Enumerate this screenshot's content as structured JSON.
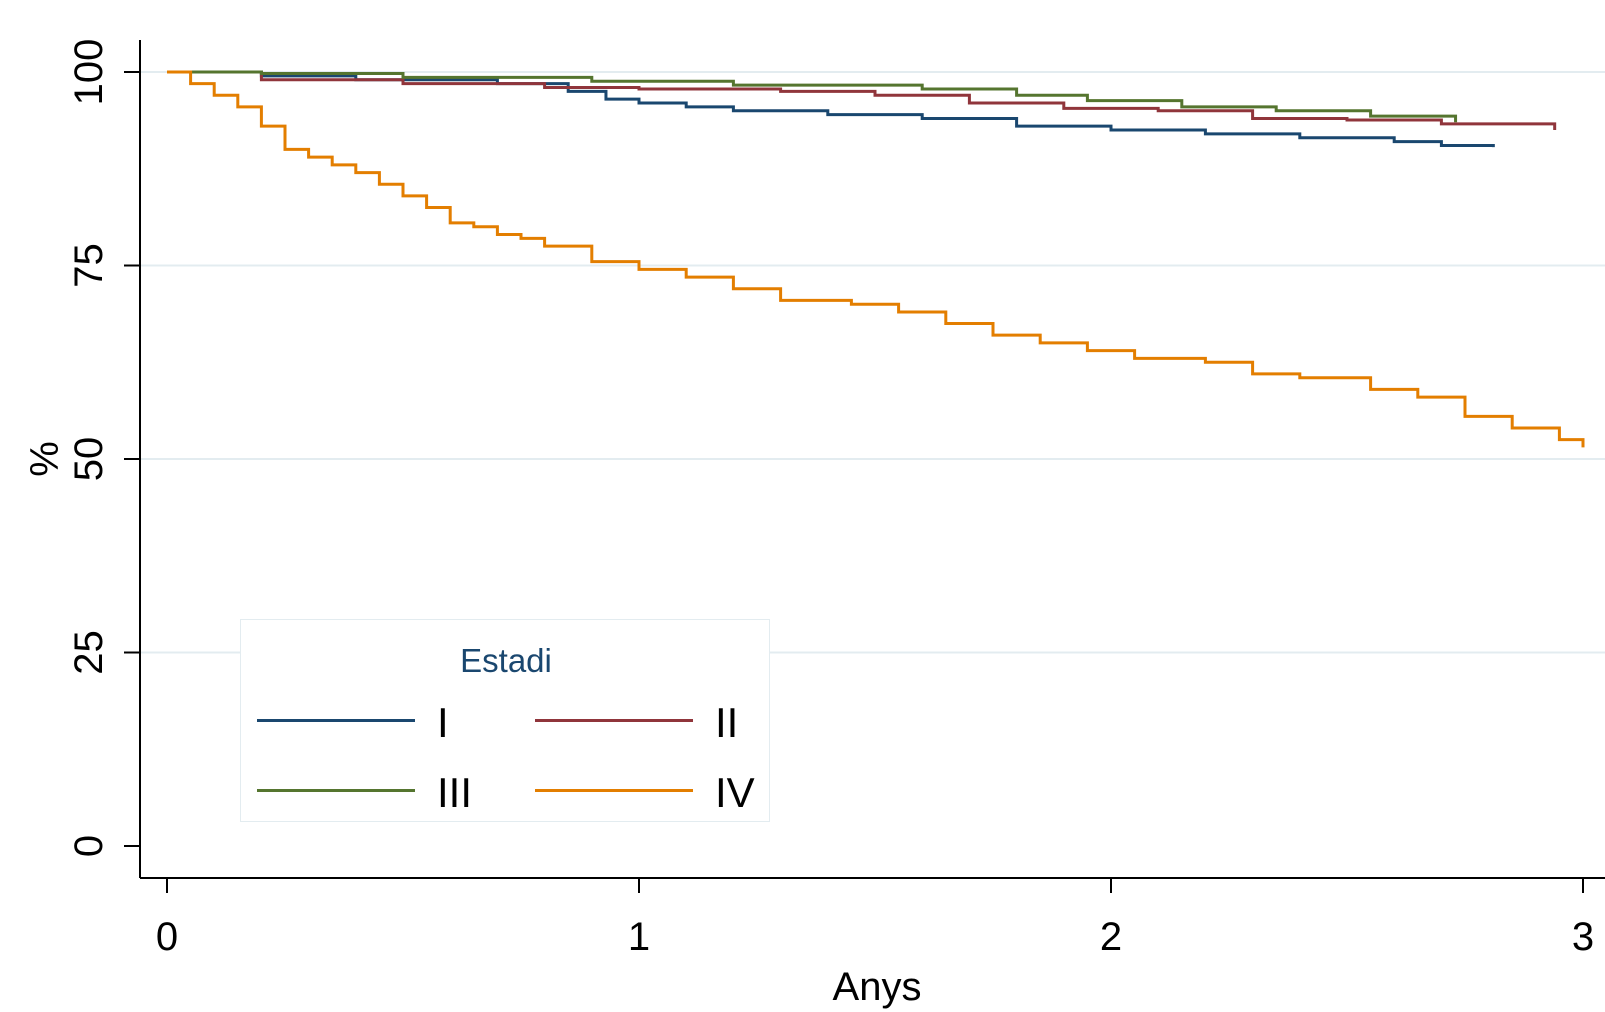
{
  "chart_data": {
    "type": "line",
    "step": true,
    "xlabel": "Anys",
    "ylabel": "%",
    "xlim": [
      0,
      3
    ],
    "ylim": [
      0,
      100
    ],
    "xticks": [
      "0",
      "1",
      "2",
      "3"
    ],
    "yticks": [
      "0",
      "25",
      "50",
      "75",
      "100"
    ],
    "grid": "horizontal",
    "legend": {
      "title": "Estadi",
      "position": "bottom-left"
    },
    "series": [
      {
        "name": "I",
        "color": "#1a476f",
        "x": [
          0,
          0.2,
          0.4,
          0.7,
          0.85,
          0.93,
          1.0,
          1.1,
          1.2,
          1.4,
          1.6,
          1.8,
          2.0,
          2.2,
          2.4,
          2.6,
          2.7,
          2.81
        ],
        "y": [
          100,
          99.5,
          99,
          98.5,
          97.5,
          96.5,
          96,
          95.5,
          95,
          94.5,
          94,
          93,
          92.5,
          92,
          91.5,
          91,
          90.5,
          90.3
        ]
      },
      {
        "name": "II",
        "color": "#90353b",
        "x": [
          0,
          0.2,
          0.5,
          0.8,
          1.0,
          1.3,
          1.5,
          1.7,
          1.9,
          2.1,
          2.3,
          2.5,
          2.7,
          2.94
        ],
        "y": [
          100,
          99,
          98.5,
          98,
          97.8,
          97.5,
          97,
          96,
          95.3,
          95,
          94,
          93.8,
          93.3,
          92.5
        ]
      },
      {
        "name": "III",
        "color": "#55752f",
        "x": [
          0,
          0.2,
          0.5,
          0.9,
          1.2,
          1.6,
          1.8,
          1.95,
          2.15,
          2.35,
          2.55,
          2.73
        ],
        "y": [
          100,
          99.8,
          99.3,
          98.8,
          98.3,
          97.8,
          97,
          96.3,
          95.5,
          95,
          94.3,
          93.5
        ]
      },
      {
        "name": "IV",
        "color": "#e37e00",
        "x": [
          0,
          0.05,
          0.1,
          0.15,
          0.2,
          0.25,
          0.3,
          0.35,
          0.4,
          0.45,
          0.5,
          0.55,
          0.6,
          0.65,
          0.7,
          0.75,
          0.8,
          0.9,
          1.0,
          1.1,
          1.2,
          1.3,
          1.45,
          1.55,
          1.65,
          1.75,
          1.85,
          1.95,
          2.05,
          2.2,
          2.3,
          2.4,
          2.55,
          2.65,
          2.75,
          2.85,
          2.95,
          3.0
        ],
        "y": [
          100,
          98.5,
          97,
          95.5,
          93,
          90,
          89,
          88,
          87,
          85.5,
          84,
          82.5,
          80.5,
          80,
          79,
          78.5,
          77.5,
          75.5,
          74.5,
          73.5,
          72,
          70.5,
          70,
          69,
          67.5,
          66,
          65,
          64,
          63,
          62.5,
          61,
          60.5,
          59,
          58,
          55.5,
          54,
          52.5,
          51.5
        ]
      }
    ]
  }
}
